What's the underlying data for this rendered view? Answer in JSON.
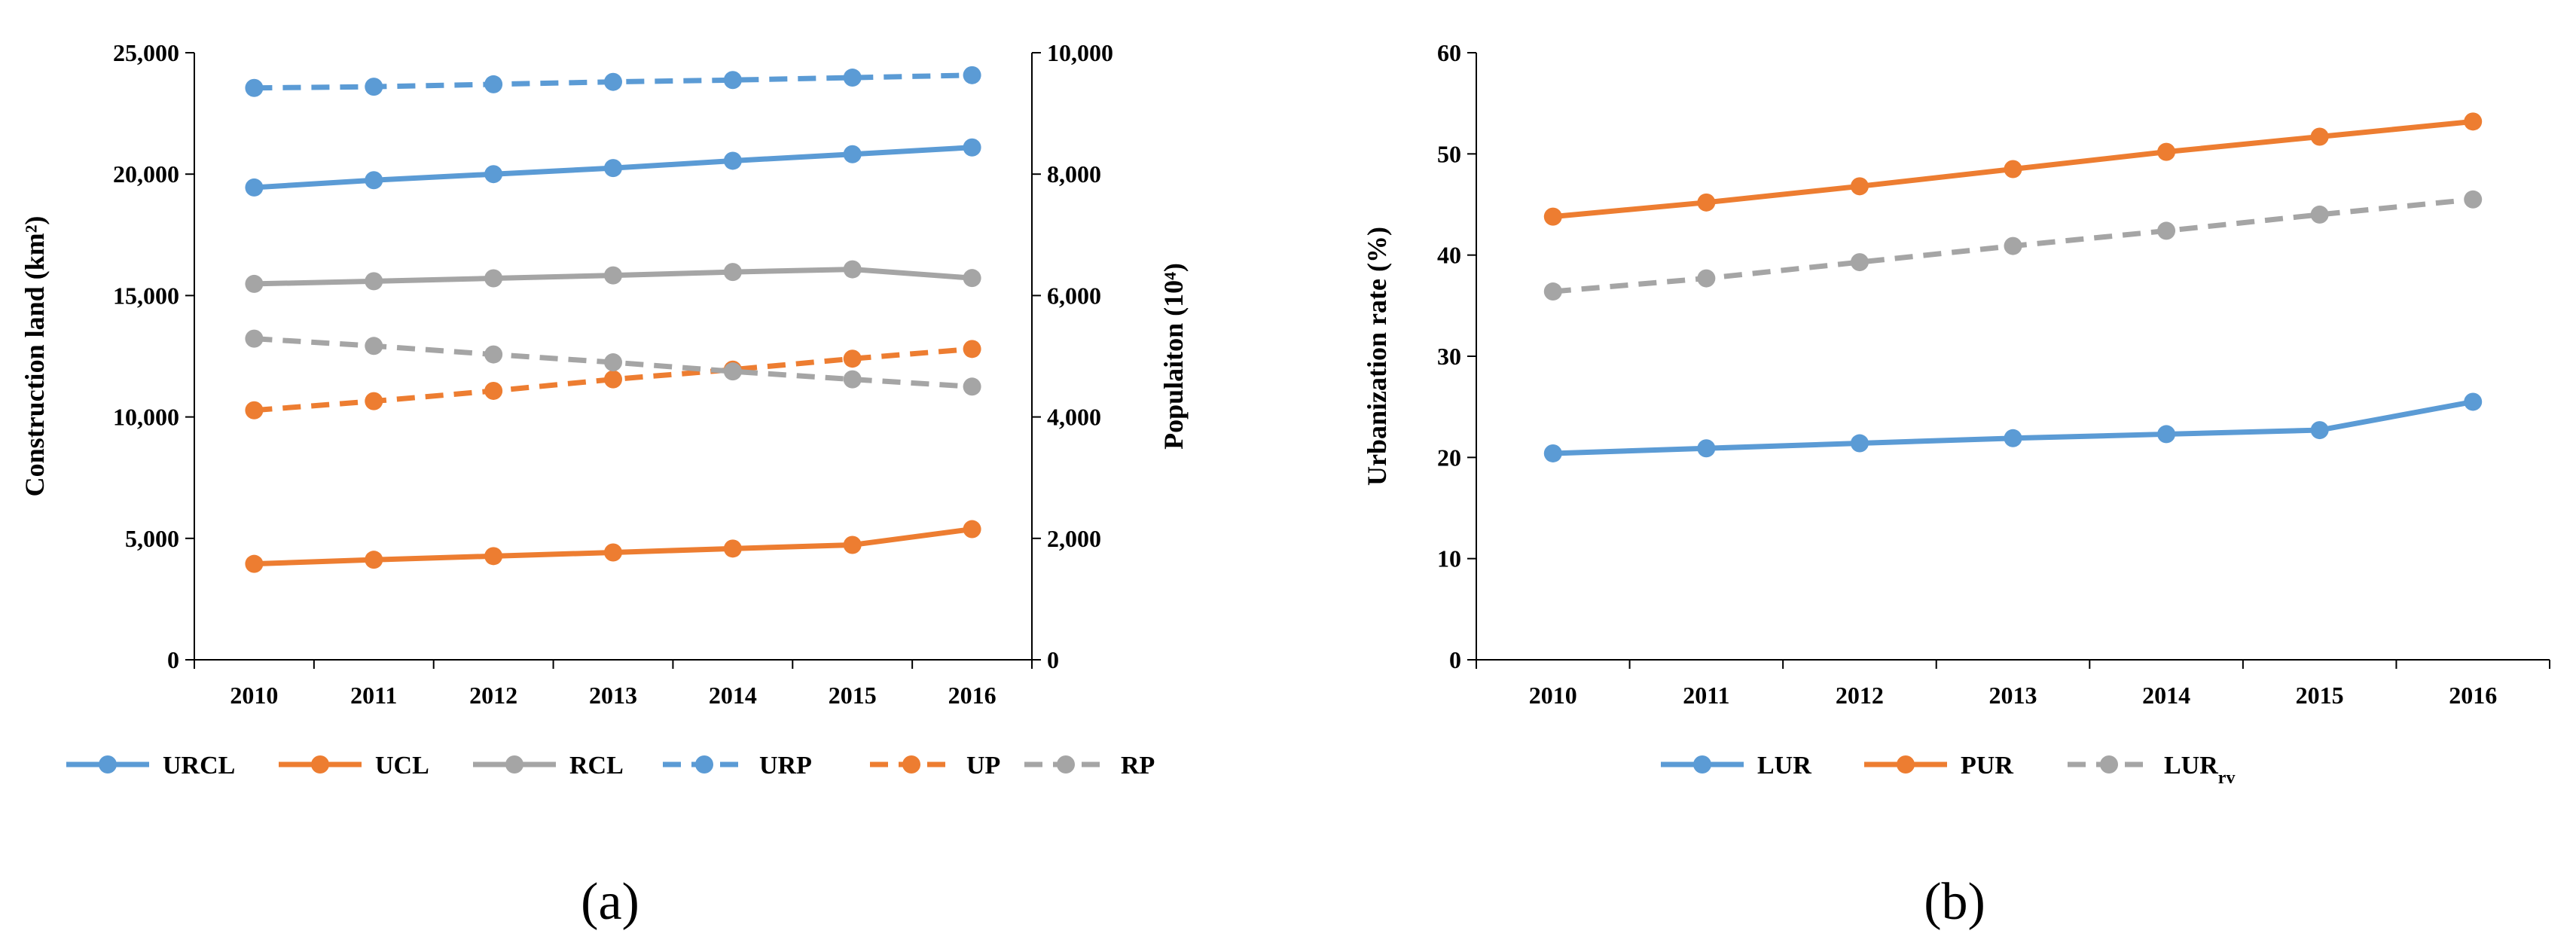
{
  "chart_data": [
    {
      "type": "line",
      "panel_label": "(a)",
      "x": [
        "2010",
        "2011",
        "2012",
        "2013",
        "2014",
        "2015",
        "2016"
      ],
      "ylabel": "Construction land (km²)",
      "y2label": "Populaiton (10⁴)",
      "ylim": [
        0,
        25000
      ],
      "y2lim": [
        0,
        10000
      ],
      "yticks": [
        "0",
        "5,000",
        "10,000",
        "15,000",
        "20,000",
        "25,000"
      ],
      "y2ticks": [
        "0",
        "2,000",
        "4,000",
        "6,000",
        "8,000",
        "10,000"
      ],
      "legend_position": "bottom",
      "grid": false,
      "series": [
        {
          "name": "URCL",
          "axis": "left",
          "style": "solid",
          "color": "#5B9BD5",
          "values": [
            19450,
            19750,
            20000,
            20250,
            20550,
            20820,
            21100
          ]
        },
        {
          "name": "UCL",
          "axis": "left",
          "style": "solid",
          "color": "#ED7D31",
          "values": [
            3950,
            4120,
            4270,
            4420,
            4580,
            4730,
            5380
          ]
        },
        {
          "name": "RCL",
          "axis": "left",
          "style": "solid",
          "color": "#A5A5A5",
          "values": [
            15480,
            15590,
            15710,
            15830,
            15970,
            16080,
            15720
          ]
        },
        {
          "name": "URP",
          "axis": "right",
          "style": "dashed",
          "color": "#5B9BD5",
          "values": [
            9420,
            9440,
            9480,
            9520,
            9550,
            9590,
            9630
          ]
        },
        {
          "name": "UP",
          "axis": "right",
          "style": "dashed",
          "color": "#ED7D31",
          "values": [
            4110,
            4260,
            4430,
            4620,
            4780,
            4960,
            5120
          ]
        },
        {
          "name": "RP",
          "axis": "right",
          "style": "dashed",
          "color": "#A5A5A5",
          "values": [
            5290,
            5170,
            5030,
            4900,
            4750,
            4620,
            4500
          ]
        }
      ]
    },
    {
      "type": "line",
      "panel_label": "(b)",
      "x": [
        "2010",
        "2011",
        "2012",
        "2013",
        "2014",
        "2015",
        "2016"
      ],
      "ylabel": "Urbanization rate (%)",
      "ylim": [
        0,
        60
      ],
      "yticks": [
        "0",
        "10",
        "20",
        "30",
        "40",
        "50",
        "60"
      ],
      "legend_position": "bottom",
      "grid": false,
      "series": [
        {
          "name": "LUR",
          "style": "solid",
          "color": "#5B9BD5",
          "values": [
            20.4,
            20.9,
            21.4,
            21.9,
            22.3,
            22.7,
            25.5
          ]
        },
        {
          "name": "PUR",
          "style": "solid",
          "color": "#ED7D31",
          "values": [
            43.8,
            45.2,
            46.8,
            48.5,
            50.2,
            51.7,
            53.2
          ]
        },
        {
          "name": "LURrv",
          "display_main": "LUR",
          "display_sub": "rv",
          "style": "dashed",
          "color": "#A5A5A5",
          "values": [
            36.4,
            37.7,
            39.3,
            40.9,
            42.4,
            44.0,
            45.5
          ]
        }
      ]
    }
  ]
}
